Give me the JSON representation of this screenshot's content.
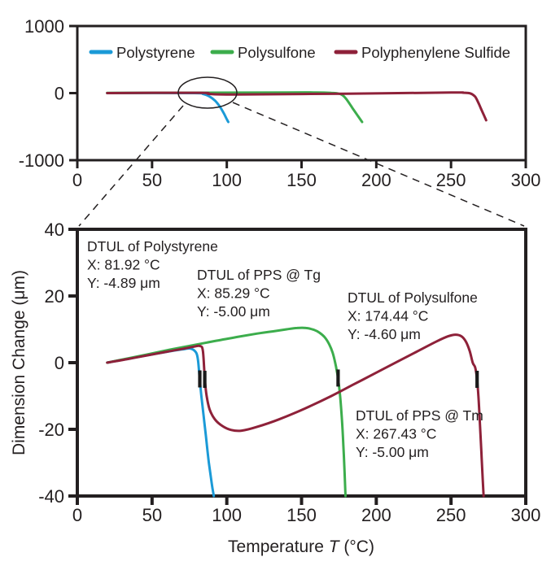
{
  "figure": {
    "description": "DTUL thermomechanical analysis figure with overview plot and magnified plot",
    "colors": {
      "polystyrene": "#1B9AD7",
      "polysulfone": "#3CAD4C",
      "polyphenylene_sulfide": "#8E2139",
      "axis": "#231F20",
      "marker": "#1a1a1a",
      "background": "#FFFFFF"
    }
  },
  "chart_data": [
    {
      "id": "overview",
      "type": "line",
      "title": "",
      "xlabel": "",
      "ylabel": "",
      "xlim": [
        0,
        300
      ],
      "ylim": [
        -1000,
        1000
      ],
      "xticks": [
        0,
        50,
        100,
        150,
        200,
        250,
        300
      ],
      "yticks": [
        1000,
        0,
        -1000
      ],
      "grid": false,
      "legend_position": "top-inside",
      "legend": [
        {
          "label": "Polystyrene",
          "color": "#1B9AD7"
        },
        {
          "label": "Polysulfone",
          "color": "#3CAD4C"
        },
        {
          "label": "Polyphenylene Sulfide",
          "color": "#8E2139"
        }
      ],
      "series": [
        {
          "name": "Polystyrene",
          "color": "#1B9AD7",
          "points": [
            [
              20,
              0
            ],
            [
              78,
              0
            ],
            [
              84,
              -12
            ],
            [
              88,
              -45
            ],
            [
              92,
              -110
            ],
            [
              95,
              -190
            ],
            [
              98,
              -300
            ],
            [
              100,
              -390
            ],
            [
              101,
              -430
            ]
          ]
        },
        {
          "name": "Polysulfone",
          "color": "#3CAD4C",
          "points": [
            [
              20,
              2
            ],
            [
              140,
              10
            ],
            [
              160,
              9
            ],
            [
              170,
              3
            ],
            [
              174,
              -5
            ],
            [
              177,
              -25
            ],
            [
              180,
              -90
            ],
            [
              184,
              -220
            ],
            [
              188,
              -350
            ],
            [
              190.5,
              -430
            ]
          ]
        },
        {
          "name": "Polyphenylene Sulfide",
          "color": "#8E2139",
          "points": [
            [
              20,
              0
            ],
            [
              82,
              5
            ],
            [
              88,
              -12
            ],
            [
              105,
              -20
            ],
            [
              180,
              -8
            ],
            [
              250,
              8
            ],
            [
              258,
              6
            ],
            [
              263,
              -5
            ],
            [
              266,
              -50
            ],
            [
              268,
              -130
            ],
            [
              270,
              -230
            ],
            [
              272,
              -330
            ],
            [
              273.5,
              -405
            ]
          ]
        }
      ],
      "callout": {
        "shape": "ellipse",
        "x_range_c": [
          68,
          106
        ],
        "y_center_um": 0
      }
    },
    {
      "id": "magnified",
      "type": "line",
      "title": "",
      "xlabel": "Temperature T (°C)",
      "xlabel_parts": {
        "prefix": "Temperature ",
        "symbol": "T",
        "suffix": " (°C)"
      },
      "ylabel": "Dimension Change (μm)",
      "xlim": [
        0,
        300
      ],
      "ylim": [
        -40,
        40
      ],
      "xticks": [
        0,
        50,
        100,
        150,
        200,
        250,
        300
      ],
      "yticks": [
        40,
        20,
        0,
        -20,
        -40
      ],
      "grid": false,
      "series": [
        {
          "name": "Polystyrene",
          "color": "#1B9AD7",
          "points": [
            [
              20,
              0
            ],
            [
              32,
              1
            ],
            [
              45,
              2.1
            ],
            [
              58,
              3.1
            ],
            [
              66,
              3.7
            ],
            [
              72,
              4.1
            ],
            [
              76,
              4.2
            ],
            [
              79.5,
              3
            ],
            [
              80.8,
              0.5
            ],
            [
              81.9,
              -4.9
            ],
            [
              83,
              -10
            ],
            [
              84.5,
              -16
            ],
            [
              86,
              -22
            ],
            [
              88,
              -30
            ],
            [
              90,
              -36.5
            ],
            [
              91.3,
              -40
            ]
          ]
        },
        {
          "name": "Polysulfone",
          "color": "#3CAD4C",
          "points": [
            [
              20,
              0
            ],
            [
              33,
              1.2
            ],
            [
              47,
              2.5
            ],
            [
              62,
              3.9
            ],
            [
              77,
              5.2
            ],
            [
              92,
              6.5
            ],
            [
              107,
              7.7
            ],
            [
              120,
              8.7
            ],
            [
              131,
              9.4
            ],
            [
              140,
              10
            ],
            [
              147,
              10.4
            ],
            [
              153,
              10.4
            ],
            [
              158,
              9.9
            ],
            [
              162,
              9
            ],
            [
              165.5,
              7.6
            ],
            [
              168.5,
              5.5
            ],
            [
              170.8,
              3
            ],
            [
              172.5,
              0
            ],
            [
              173.6,
              -2.5
            ],
            [
              174.4,
              -4.6
            ],
            [
              175.8,
              -10
            ],
            [
              177,
              -17
            ],
            [
              178,
              -25
            ],
            [
              178.8,
              -33
            ],
            [
              179.4,
              -40
            ]
          ]
        },
        {
          "name": "Polyphenylene Sulfide",
          "color": "#8E2139",
          "points": [
            [
              20,
              0
            ],
            [
              34,
              1.1
            ],
            [
              48,
              2.3
            ],
            [
              60,
              3.3
            ],
            [
              70,
              4.1
            ],
            [
              78,
              4.8
            ],
            [
              82,
              5
            ],
            [
              84,
              3.5
            ],
            [
              85.3,
              -5
            ],
            [
              86.5,
              -10
            ],
            [
              88.5,
              -14
            ],
            [
              92,
              -17
            ],
            [
              97,
              -19
            ],
            [
              103,
              -20.2
            ],
            [
              110,
              -20.4
            ],
            [
              120,
              -19.3
            ],
            [
              135,
              -17
            ],
            [
              152,
              -13.8
            ],
            [
              170,
              -10
            ],
            [
              185,
              -6.5
            ],
            [
              200,
              -3
            ],
            [
              215,
              0.5
            ],
            [
              228,
              3.5
            ],
            [
              240,
              6.3
            ],
            [
              248,
              7.9
            ],
            [
              253,
              8.4
            ],
            [
              257,
              7.9
            ],
            [
              260,
              6.3
            ],
            [
              262.5,
              3.5
            ],
            [
              264.5,
              0
            ],
            [
              266.2,
              -1.5
            ],
            [
              267.4,
              -5
            ],
            [
              268.3,
              -10
            ],
            [
              269.3,
              -18
            ],
            [
              270.3,
              -27
            ],
            [
              271.2,
              -35
            ],
            [
              271.8,
              -40
            ]
          ]
        }
      ],
      "dtul_points": [
        {
          "label": "DTUL of Polystyrene",
          "x_c": 81.92,
          "y_um": -4.89
        },
        {
          "label": "DTUL of PPS @ Tg",
          "x_c": 85.29,
          "y_um": -5.0
        },
        {
          "label": "DTUL of Polysulfone",
          "x_c": 174.44,
          "y_um": -4.6
        },
        {
          "label": "DTUL of PPS @ Tm",
          "x_c": 267.43,
          "y_um": -5.0
        }
      ],
      "annotations": [
        {
          "series": "Polystyrene",
          "color": "#1B9AD7",
          "lines": [
            "DTUL of Polystyrene",
            "X: 81.92 °C",
            "Y: -4.89 μm"
          ]
        },
        {
          "series": "Polyphenylene Sulfide",
          "color": "#8E2139",
          "lines": [
            "DTUL of PPS @ Tg",
            "X: 85.29 °C",
            "Y: -5.00 μm"
          ]
        },
        {
          "series": "Polysulfone",
          "color": "#3CAD4C",
          "lines": [
            "DTUL of Polysulfone",
            "X: 174.44 °C",
            "Y: -4.60 μm"
          ]
        },
        {
          "series": "Polyphenylene Sulfide",
          "color": "#8E2139",
          "lines": [
            "DTUL of PPS @ Tm",
            "X: 267.43 °C",
            "Y: -5.00 μm"
          ]
        }
      ]
    }
  ]
}
